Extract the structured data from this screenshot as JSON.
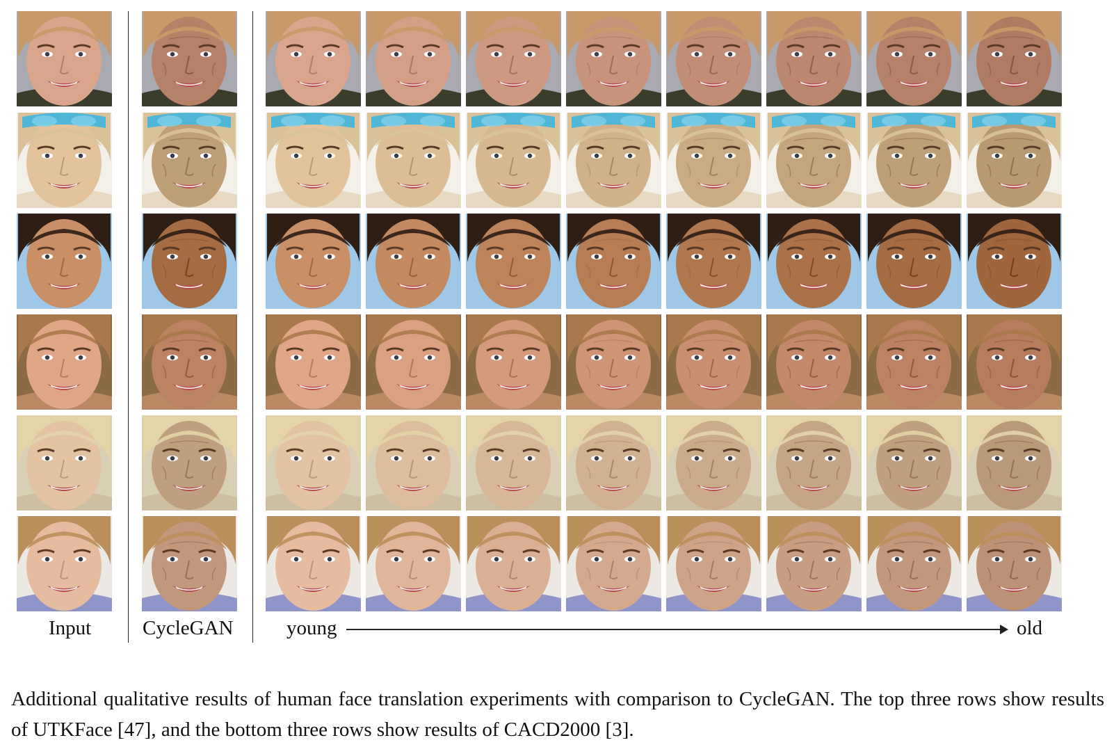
{
  "figure": {
    "labels": {
      "input": "Input",
      "cyclegan": "CycleGAN",
      "young": "young",
      "old": "old"
    },
    "rows": [
      {
        "skin": "#d9a58c",
        "hair": "#c79a6a",
        "bg": "#a9a9b2",
        "cloth": "#3a3d2c",
        "extra": "none"
      },
      {
        "skin": "#e2c39c",
        "hair": "#d9c29a",
        "bg": "#f3efe9",
        "cloth": "#e8d9c2",
        "extra": "goggles"
      },
      {
        "skin": "#c98f67",
        "hair": "#2e1e14",
        "bg": "#9fc8e8",
        "cloth": "#9fc8e8",
        "extra": "none"
      },
      {
        "skin": "#dfa687",
        "hair": "#a8794d",
        "bg": "#8a6b45",
        "cloth": "#b98965",
        "extra": "none"
      },
      {
        "skin": "#e4c3a2",
        "hair": "#e4d4a8",
        "bg": "#d9cfb4",
        "cloth": "#cdbf9f",
        "extra": "none"
      },
      {
        "skin": "#e6bca0",
        "hair": "#b98f5c",
        "bg": "#ece8e4",
        "cloth": "#8f95c8",
        "extra": "none"
      }
    ]
  },
  "caption": {
    "text": "Additional qualitative results of human face translation experiments with comparison to CycleGAN. The top three rows show results of UTKFace [47], and the bottom three rows show results of CACD2000 [3]."
  }
}
